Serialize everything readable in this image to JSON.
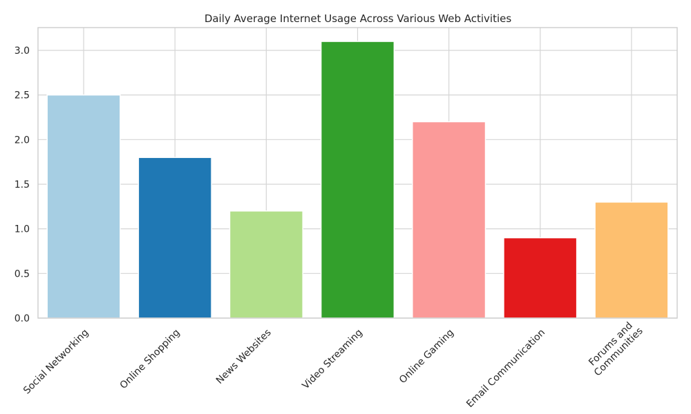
{
  "chart_data": {
    "type": "bar",
    "title": "Daily Average Internet Usage Across Various Web Activities",
    "xlabel": "",
    "ylabel": "",
    "categories": [
      "Social Networking",
      "Online Shopping",
      "News Websites",
      "Video Streaming",
      "Online Gaming",
      "Email Communication",
      "Forums and\nCommunities"
    ],
    "values": [
      2.5,
      1.8,
      1.2,
      3.1,
      2.2,
      0.9,
      1.3
    ],
    "colors": [
      "#a6cee3",
      "#1f78b4",
      "#b2df8a",
      "#33a02c",
      "#fb9a99",
      "#e31a1c",
      "#fdbf6f"
    ],
    "ylim": [
      0,
      3.255
    ],
    "yticks": [
      "0.0",
      "0.5",
      "1.0",
      "1.5",
      "2.0",
      "2.5",
      "3.0"
    ],
    "grid": true,
    "legend": "none"
  }
}
